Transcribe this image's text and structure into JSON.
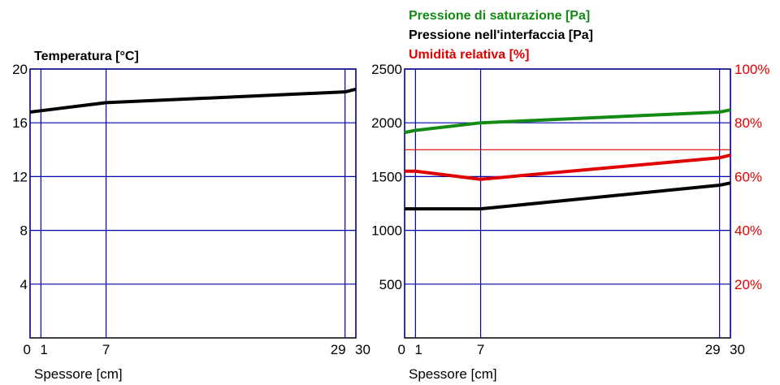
{
  "colors": {
    "grid": "#0000aa",
    "temperature": "#000000",
    "saturation": "#138a13",
    "interface": "#000000",
    "humidity": "#e00000",
    "text": "#000000"
  },
  "chart_data": [
    {
      "type": "line",
      "title": "Temperatura [°C]",
      "xlabel": "Spessore [cm]",
      "xlim": [
        0,
        30
      ],
      "ylim": [
        0,
        20
      ],
      "x_ticks": [
        {
          "value": 0,
          "label": "0"
        },
        {
          "value": 1,
          "label": "1"
        },
        {
          "value": 7,
          "label": "7"
        },
        {
          "value": 29,
          "label": "29"
        },
        {
          "value": 30,
          "label": "30"
        }
      ],
      "y_ticks": [
        {
          "value": 4,
          "label": "4"
        },
        {
          "value": 8,
          "label": "8"
        },
        {
          "value": 12,
          "label": "12"
        },
        {
          "value": 16,
          "label": "16"
        },
        {
          "value": 20,
          "label": "20"
        }
      ],
      "series": [
        {
          "name": "Temperatura [°C]",
          "color_key": "temperature",
          "x": [
            0,
            1,
            7,
            29,
            30
          ],
          "y": [
            16.8,
            16.9,
            17.5,
            18.3,
            18.5
          ]
        }
      ]
    },
    {
      "type": "line",
      "legend": [
        "Pressione di saturazione [Pa]",
        "Pressione nell'interfaccia [Pa]",
        "Umidità relativa [%]"
      ],
      "xlabel": "Spessore [cm]",
      "xlim": [
        0,
        30
      ],
      "ylim": [
        0,
        2500
      ],
      "y2lim": [
        0,
        100
      ],
      "x_ticks": [
        {
          "value": 0,
          "label": "0"
        },
        {
          "value": 1,
          "label": "1"
        },
        {
          "value": 7,
          "label": "7"
        },
        {
          "value": 29,
          "label": "29"
        },
        {
          "value": 30,
          "label": "30"
        }
      ],
      "y_ticks": [
        {
          "value": 500,
          "label": "500"
        },
        {
          "value": 1000,
          "label": "1000"
        },
        {
          "value": 1500,
          "label": "1500"
        },
        {
          "value": 2000,
          "label": "2000"
        },
        {
          "value": 2500,
          "label": "2500"
        }
      ],
      "y2_ticks": [
        {
          "value": 20,
          "label": "20%"
        },
        {
          "value": 40,
          "label": "40%"
        },
        {
          "value": 60,
          "label": "60%"
        },
        {
          "value": 80,
          "label": "80%"
        },
        {
          "value": 100,
          "label": "100%"
        }
      ],
      "series": [
        {
          "name": "Pressione di saturazione [Pa]",
          "axis": "left",
          "color_key": "saturation",
          "x": [
            0,
            1,
            7,
            29,
            30
          ],
          "y": [
            1910,
            1930,
            2000,
            2100,
            2120
          ]
        },
        {
          "name": "Pressione nell'interfaccia [Pa]",
          "axis": "left",
          "color_key": "interface",
          "x": [
            0,
            1,
            7,
            29,
            30
          ],
          "y": [
            1200,
            1200,
            1200,
            1420,
            1440
          ]
        },
        {
          "name": "Umidità relativa [%]",
          "axis": "right",
          "color_key": "humidity",
          "x": [
            0,
            1,
            7,
            29,
            30
          ],
          "y": [
            62,
            62,
            59,
            67,
            68
          ]
        }
      ],
      "reference_lines": [
        {
          "axis": "right",
          "value": 70,
          "color_key": "humidity"
        }
      ]
    }
  ]
}
